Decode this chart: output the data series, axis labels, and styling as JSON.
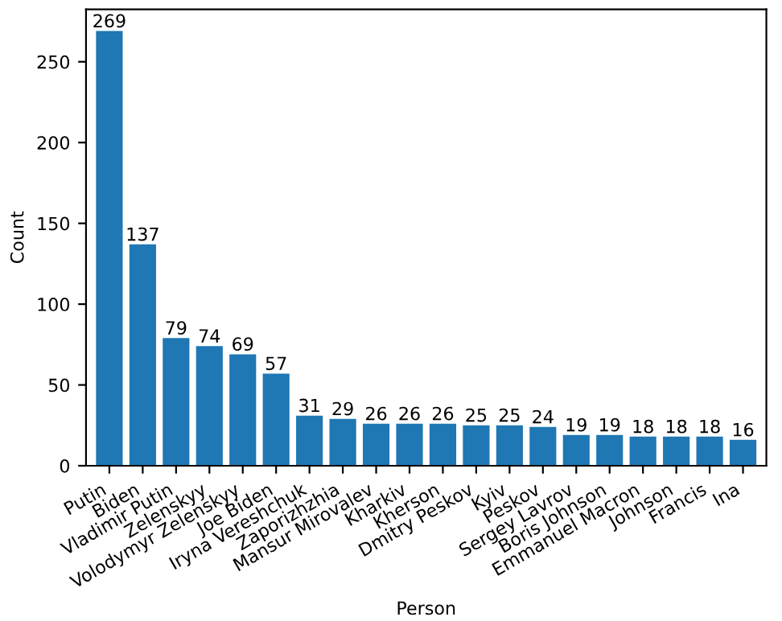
{
  "chart_data": {
    "type": "bar",
    "xlabel": "Person",
    "ylabel": "Count",
    "categories": [
      "Putin",
      "Biden",
      "Vladimir Putin",
      "Zelenskyy",
      "Volodymyr Zelenskyy",
      "Joe Biden",
      "Iryna Vereshchuk",
      "Zaporizhzhia",
      "Mansur Mirovalev",
      "Kharkiv",
      "Kherson",
      "Dmitry Peskov",
      "Kyiv",
      "Peskov",
      "Sergey Lavrov",
      "Boris Johnson",
      "Emmanuel Macron",
      "Johnson",
      "Francis",
      "Ina"
    ],
    "values": [
      269,
      137,
      79,
      74,
      69,
      57,
      31,
      29,
      26,
      26,
      26,
      25,
      25,
      24,
      19,
      19,
      18,
      18,
      18,
      16
    ],
    "color": "#1f77b4",
    "ylim": [
      0,
      282.45
    ],
    "yticks": [
      0,
      50,
      100,
      150,
      200,
      250
    ],
    "grid": false,
    "data_labels": true
  }
}
